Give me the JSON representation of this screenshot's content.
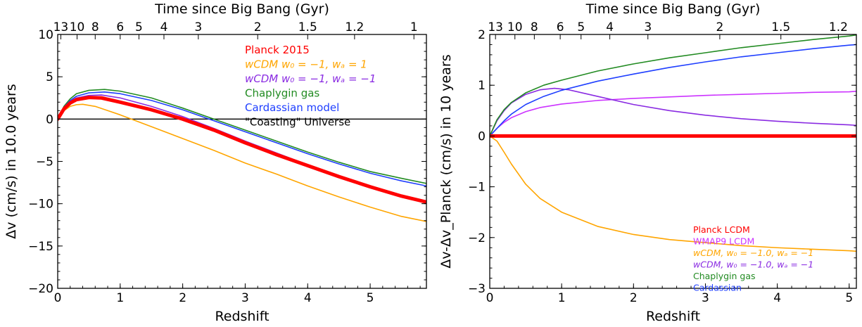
{
  "colors": {
    "planck": "#ff0000",
    "wmap": "#cc33ff",
    "wcdm_a": "#ffa500",
    "wcdm_b": "#8a2be2",
    "chaplygin": "#228b22",
    "cardassian": "#1f3fff",
    "coasting": "#000000"
  },
  "chart_data": [
    {
      "type": "line",
      "title": "",
      "top_axis_label": "Time since Big Bang (Gyr)",
      "top_axis_ticks": [
        {
          "label": "13",
          "z": 0.05
        },
        {
          "label": "10",
          "z": 0.31
        },
        {
          "label": "8",
          "z": 0.6
        },
        {
          "label": "6",
          "z": 1.0
        },
        {
          "label": "5",
          "z": 1.3
        },
        {
          "label": "4",
          "z": 1.7
        },
        {
          "label": "3",
          "z": 2.25
        },
        {
          "label": "2",
          "z": 3.2
        },
        {
          "label": "1.5",
          "z": 4.0
        },
        {
          "label": "1.2",
          "z": 4.75
        },
        {
          "label": "1",
          "z": 5.7
        }
      ],
      "xlabel": "Redshift",
      "ylabel": "Δv (cm/s) in 10.0 years",
      "xlim": [
        0,
        5.9
      ],
      "ylim": [
        -20,
        10
      ],
      "x_ticks": [
        0,
        1,
        2,
        3,
        4,
        5
      ],
      "x_tick_labels": [
        "0",
        "1",
        "2",
        "3",
        "4",
        "5"
      ],
      "y_ticks": [
        -20,
        -15,
        -10,
        -5,
        0,
        5,
        10
      ],
      "y_tick_labels": [
        "−20",
        "−15",
        "−10",
        "−5",
        "0",
        "5",
        "10"
      ],
      "legend_position": "top-center",
      "legend": [
        {
          "text": "Planck 2015",
          "color_key": "planck"
        },
        {
          "text": "wCDM w₀ = −1, wₐ = 1",
          "color_key": "wcdm_a",
          "math": true
        },
        {
          "text": "wCDM w₀ = −1, wₐ = −1",
          "color_key": "wcdm_b",
          "math": true
        },
        {
          "text": "Chaplygin gas",
          "color_key": "chaplygin"
        },
        {
          "text": "Cardassian model",
          "color_key": "cardassian"
        },
        {
          "text": "\"Coasting\" Universe",
          "color_key": "coasting"
        }
      ],
      "series": [
        {
          "name": "Planck 2015",
          "color_key": "planck",
          "width": 5,
          "x": [
            0,
            0.1,
            0.2,
            0.3,
            0.5,
            0.7,
            1.0,
            1.5,
            2.0,
            2.5,
            3.0,
            3.5,
            4.0,
            4.5,
            5.0,
            5.5,
            5.9
          ],
          "y": [
            0,
            1.2,
            1.9,
            2.3,
            2.55,
            2.5,
            2.0,
            1.1,
            0,
            -1.3,
            -2.8,
            -4.2,
            -5.5,
            -6.8,
            -8.0,
            -9.1,
            -9.8
          ]
        },
        {
          "name": "wCDM w₀ = −1, wₐ = 1",
          "color_key": "wcdm_a",
          "width": 1.6,
          "x": [
            0,
            0.1,
            0.2,
            0.3,
            0.4,
            0.6,
            0.8,
            1.0,
            1.5,
            2.0,
            2.5,
            3.0,
            3.5,
            4.0,
            4.5,
            5.0,
            5.5,
            5.9
          ],
          "y": [
            0,
            1.0,
            1.5,
            1.7,
            1.75,
            1.5,
            1.0,
            0.5,
            -0.9,
            -2.3,
            -3.7,
            -5.2,
            -6.5,
            -7.9,
            -9.2,
            -10.4,
            -11.5,
            -12.1
          ]
        },
        {
          "name": "wCDM w₀ = −1, wₐ = −1",
          "color_key": "wcdm_b",
          "width": 1.6,
          "x": [
            0,
            0.1,
            0.2,
            0.3,
            0.5,
            0.7,
            1.0,
            1.5,
            2.0,
            2.5,
            3.0,
            3.5,
            4.0,
            4.5,
            5.0,
            5.5,
            5.9
          ],
          "y": [
            0,
            1.3,
            2.1,
            2.5,
            2.8,
            2.85,
            2.5,
            1.5,
            0.3,
            -1.1,
            -2.6,
            -4.0,
            -5.4,
            -6.8,
            -7.9,
            -9.0,
            -9.7
          ]
        },
        {
          "name": "Chaplygin gas",
          "color_key": "chaplygin",
          "width": 1.6,
          "x": [
            0,
            0.1,
            0.2,
            0.3,
            0.5,
            0.75,
            1.0,
            1.5,
            2.0,
            2.5,
            3.0,
            3.5,
            4.0,
            4.5,
            5.0,
            5.5,
            5.9
          ],
          "y": [
            0,
            1.5,
            2.4,
            3.0,
            3.4,
            3.5,
            3.3,
            2.5,
            1.3,
            0,
            -1.3,
            -2.6,
            -3.9,
            -5.1,
            -6.2,
            -7.0,
            -7.6
          ]
        },
        {
          "name": "Cardassian model",
          "color_key": "cardassian",
          "width": 1.6,
          "x": [
            0,
            0.1,
            0.2,
            0.3,
            0.5,
            0.75,
            1.0,
            1.5,
            2.0,
            2.5,
            3.0,
            3.5,
            4.0,
            4.5,
            5.0,
            5.5,
            5.9
          ],
          "y": [
            0,
            1.4,
            2.2,
            2.7,
            3.1,
            3.2,
            3.0,
            2.2,
            1.1,
            -0.2,
            -1.5,
            -2.8,
            -4.1,
            -5.3,
            -6.4,
            -7.3,
            -7.9
          ]
        },
        {
          "name": "\"Coasting\" Universe",
          "color_key": "coasting",
          "width": 1.4,
          "x": [
            0,
            5.9
          ],
          "y": [
            0,
            0
          ]
        }
      ]
    },
    {
      "type": "line",
      "title": "",
      "top_axis_label": "Time since Big Bang (Gyr)",
      "top_axis_ticks": [
        {
          "label": "13",
          "z": 0.08
        },
        {
          "label": "10",
          "z": 0.35
        },
        {
          "label": "8",
          "z": 0.62
        },
        {
          "label": "6",
          "z": 0.98
        },
        {
          "label": "5",
          "z": 1.27
        },
        {
          "label": "4",
          "z": 1.67
        },
        {
          "label": "3",
          "z": 2.2
        },
        {
          "label": "2",
          "z": 3.2
        },
        {
          "label": "1.5",
          "z": 4.05
        },
        {
          "label": "1.2",
          "z": 4.85
        }
      ],
      "xlabel": "Redshift",
      "ylabel": "Δv-Δv_Planck (cm/s) in 10 years",
      "xlim": [
        0,
        5.1
      ],
      "ylim": [
        -3,
        2
      ],
      "x_ticks": [
        0,
        1,
        2,
        3,
        4,
        5
      ],
      "x_tick_labels": [
        "0",
        "1",
        "2",
        "3",
        "4",
        "5"
      ],
      "y_ticks": [
        -3,
        -2,
        -1,
        0,
        1,
        2
      ],
      "y_tick_labels": [
        "−3",
        "−2",
        "−1",
        "0",
        "1",
        "2"
      ],
      "legend_position": "lower-right",
      "legend": [
        {
          "text": "Planck LCDM",
          "color_key": "planck"
        },
        {
          "text": "WMAP9 LCDM",
          "color_key": "wmap"
        },
        {
          "text": "wCDM, w₀ = −1.0, wₐ = −1",
          "color_key": "wcdm_a",
          "math": true
        },
        {
          "text": "wCDM, w₀ = −1.0, wₐ = −1",
          "color_key": "wcdm_b",
          "math": true
        },
        {
          "text": "Chaplygin gas",
          "color_key": "chaplygin"
        },
        {
          "text": "Cardassian",
          "color_key": "cardassian"
        }
      ],
      "series": [
        {
          "name": "Planck LCDM",
          "color_key": "planck",
          "width": 5,
          "x": [
            0,
            5.1
          ],
          "y": [
            0,
            0
          ]
        },
        {
          "name": "WMAP9 LCDM",
          "color_key": "wmap",
          "width": 1.6,
          "x": [
            0,
            0.1,
            0.2,
            0.3,
            0.5,
            0.7,
            1.0,
            1.5,
            2.0,
            2.5,
            3.0,
            3.5,
            4.0,
            4.5,
            5.0,
            5.1
          ],
          "y": [
            0,
            0.15,
            0.27,
            0.36,
            0.48,
            0.56,
            0.63,
            0.7,
            0.74,
            0.77,
            0.8,
            0.82,
            0.84,
            0.86,
            0.87,
            0.88
          ]
        },
        {
          "name": "wCDM, w₀ = −1.0, wₐ = −1 (orange)",
          "color_key": "wcdm_a",
          "width": 1.6,
          "x": [
            0,
            0.1,
            0.2,
            0.3,
            0.5,
            0.7,
            1.0,
            1.5,
            2.0,
            2.5,
            3.0,
            3.5,
            4.0,
            4.5,
            5.0,
            5.1
          ],
          "y": [
            0,
            -0.1,
            -0.32,
            -0.55,
            -0.95,
            -1.23,
            -1.5,
            -1.78,
            -1.94,
            -2.04,
            -2.1,
            -2.16,
            -2.2,
            -2.23,
            -2.26,
            -2.27
          ]
        },
        {
          "name": "wCDM, w₀ = −1.0, wₐ = −1 (purple)",
          "color_key": "wcdm_b",
          "width": 1.6,
          "x": [
            0,
            0.1,
            0.2,
            0.3,
            0.5,
            0.7,
            0.9,
            1.1,
            1.5,
            2.0,
            2.5,
            3.0,
            3.5,
            4.0,
            4.5,
            5.0,
            5.1
          ],
          "y": [
            0,
            0.3,
            0.5,
            0.65,
            0.82,
            0.91,
            0.94,
            0.91,
            0.78,
            0.62,
            0.5,
            0.41,
            0.34,
            0.29,
            0.25,
            0.22,
            0.21
          ]
        },
        {
          "name": "Chaplygin gas",
          "color_key": "chaplygin",
          "width": 1.6,
          "x": [
            0,
            0.1,
            0.2,
            0.3,
            0.5,
            0.75,
            1.0,
            1.5,
            2.0,
            2.5,
            3.0,
            3.5,
            4.0,
            4.5,
            5.0,
            5.1
          ],
          "y": [
            0,
            0.32,
            0.52,
            0.66,
            0.85,
            1.0,
            1.1,
            1.28,
            1.42,
            1.54,
            1.64,
            1.74,
            1.82,
            1.9,
            1.97,
            1.99
          ]
        },
        {
          "name": "Cardassian",
          "color_key": "cardassian",
          "width": 1.6,
          "x": [
            0,
            0.1,
            0.2,
            0.3,
            0.5,
            0.75,
            1.0,
            1.5,
            2.0,
            2.5,
            3.0,
            3.5,
            4.0,
            4.5,
            5.0,
            5.1
          ],
          "y": [
            0,
            0.15,
            0.3,
            0.43,
            0.62,
            0.78,
            0.9,
            1.08,
            1.22,
            1.35,
            1.46,
            1.56,
            1.64,
            1.72,
            1.79,
            1.8
          ]
        }
      ]
    }
  ]
}
